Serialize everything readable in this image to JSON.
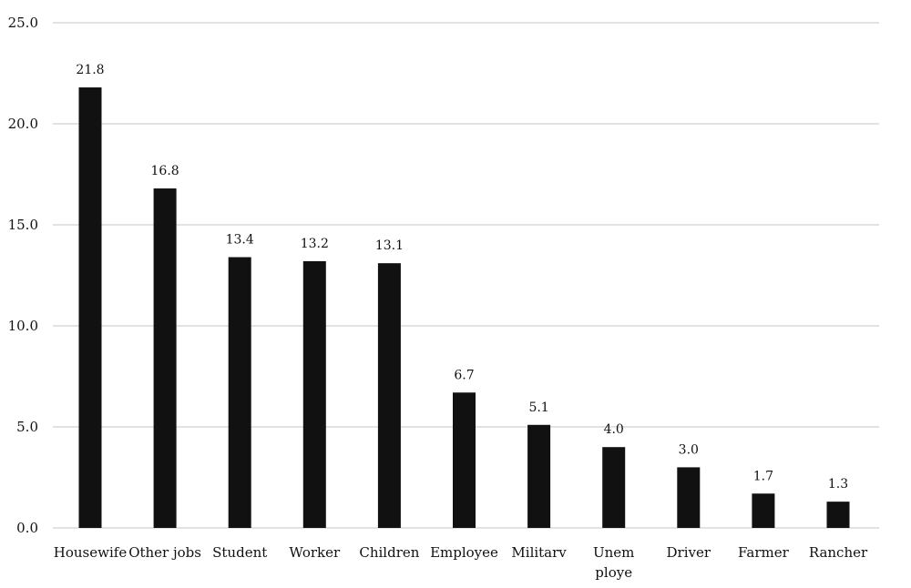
{
  "chart_data": {
    "type": "bar",
    "title": "",
    "xlabel": "",
    "ylabel": "",
    "categories": [
      "Housewife",
      "Other jobs",
      "Student",
      "Worker",
      "Children",
      "Employee",
      "Militarv",
      "Unem ploye",
      "Driver",
      "Farmer",
      "Rancher"
    ],
    "values": [
      21.8,
      16.8,
      13.4,
      13.2,
      13.1,
      6.7,
      5.1,
      4.0,
      3.0,
      1.7,
      1.3
    ],
    "data_labels": [
      "21.8",
      "16.8",
      "13.4",
      "13.2",
      "13.1",
      "6.7",
      "5.1",
      "4.0",
      "3.0",
      "1.7",
      "1.3"
    ],
    "ylim": [
      0,
      25
    ],
    "yticks": [
      "0.0",
      "5.0",
      "10.0",
      "15.0",
      "20.0",
      "25.0"
    ],
    "grid": true,
    "legend": "none",
    "bar_color": "#111111",
    "grid_color": "#d9d9d9"
  }
}
